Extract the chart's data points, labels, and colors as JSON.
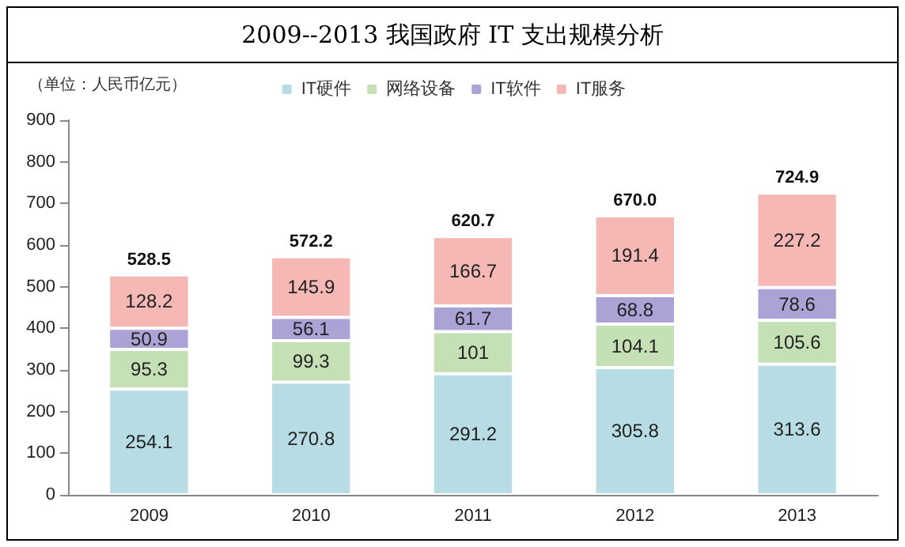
{
  "chart_data": {
    "type": "bar",
    "title": "2009--2013 我国政府 IT 支出规模分析",
    "ylabel": "（单位：人民币亿元）",
    "categories": [
      "2009",
      "2010",
      "2011",
      "2012",
      "2013"
    ],
    "series": [
      {
        "name": "IT硬件",
        "color": "#b7dce3",
        "values": [
          254.1,
          270.8,
          291.2,
          305.8,
          313.6
        ]
      },
      {
        "name": "网络设备",
        "color": "#c6e0b6",
        "values": [
          95.3,
          99.3,
          101,
          104.1,
          105.6
        ]
      },
      {
        "name": "IT软件",
        "color": "#aba3d6",
        "values": [
          50.9,
          56.1,
          61.7,
          68.8,
          78.6
        ]
      },
      {
        "name": "IT服务",
        "color": "#f5b8b5",
        "values": [
          128.2,
          145.9,
          166.7,
          191.4,
          227.2
        ]
      }
    ],
    "stacked": true,
    "data_labels": true,
    "totals": [
      "528.5",
      "572.2",
      "620.7",
      "670.0",
      "724.9"
    ],
    "ylim": [
      0,
      900
    ],
    "yticks": [
      0,
      100,
      200,
      300,
      400,
      500,
      600,
      700,
      800,
      900
    ],
    "grid": false,
    "legend": "top"
  }
}
